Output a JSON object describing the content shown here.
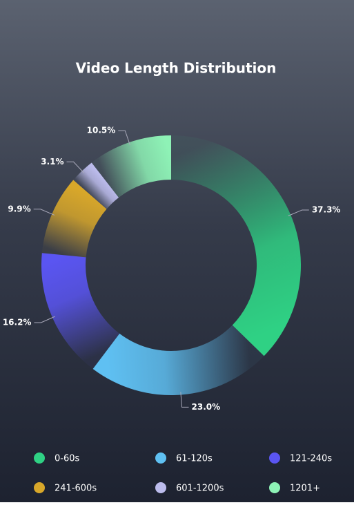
{
  "chart_data": {
    "type": "donut",
    "title": "Video Length Distribution",
    "categories": [
      "0-60s",
      "61-120s",
      "121-240s",
      "241-600s",
      "601-1200s",
      "1201+"
    ],
    "values": [
      37.3,
      23.0,
      16.2,
      9.9,
      3.1,
      10.5
    ],
    "value_labels": [
      "37.3%",
      "23.0%",
      "16.2%",
      "9.9%",
      "3.1%",
      "10.5%"
    ],
    "colors": [
      "#2fd184",
      "#5fc0f2",
      "#5a55f2",
      "#d8a72a",
      "#bcbcec",
      "#8ef2b6"
    ]
  }
}
